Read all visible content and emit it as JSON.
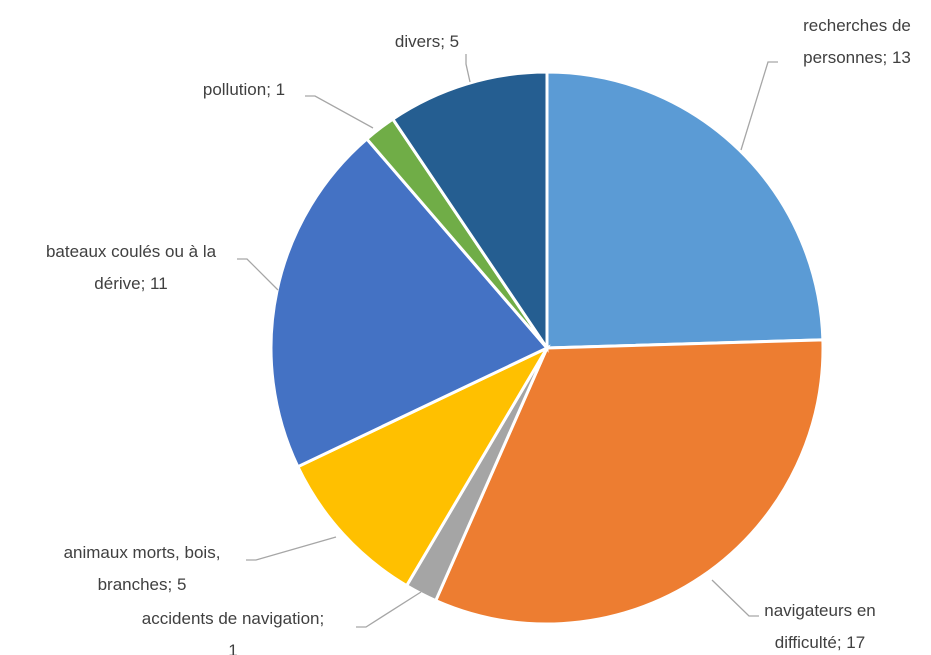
{
  "chart_data": {
    "type": "pie",
    "title": "",
    "slices": [
      {
        "label": "recherches de personnes",
        "value": 13,
        "color": "#5b9bd5",
        "text_lines": [
          "recherches de",
          "personnes; 13"
        ]
      },
      {
        "label": "navigateurs en difficulté",
        "value": 17,
        "color": "#ed7d31",
        "text_lines": [
          "navigateurs en",
          "difficulté; 17"
        ]
      },
      {
        "label": "accidents de navigation",
        "value": 1,
        "color": "#a5a5a5",
        "text_lines": [
          "accidents de navigation;",
          "1"
        ]
      },
      {
        "label": "animaux morts, bois, branches",
        "value": 5,
        "color": "#ffc000",
        "text_lines": [
          "animaux morts, bois,",
          "branches; 5"
        ]
      },
      {
        "label": "bateaux coulés ou à la dérive",
        "value": 11,
        "color": "#4472c4",
        "text_lines": [
          "bateaux coulés ou à la",
          "dérive; 11"
        ]
      },
      {
        "label": "pollution",
        "value": 1,
        "color": "#70ad47",
        "text_lines": [
          "pollution; 1"
        ]
      },
      {
        "label": "divers",
        "value": 5,
        "color": "#255e91",
        "text_lines": [
          "divers; 5"
        ]
      }
    ],
    "start_angle_deg": 0,
    "direction": "clockwise",
    "legend": "none",
    "data_labels": "outside-with-leader-lines"
  }
}
